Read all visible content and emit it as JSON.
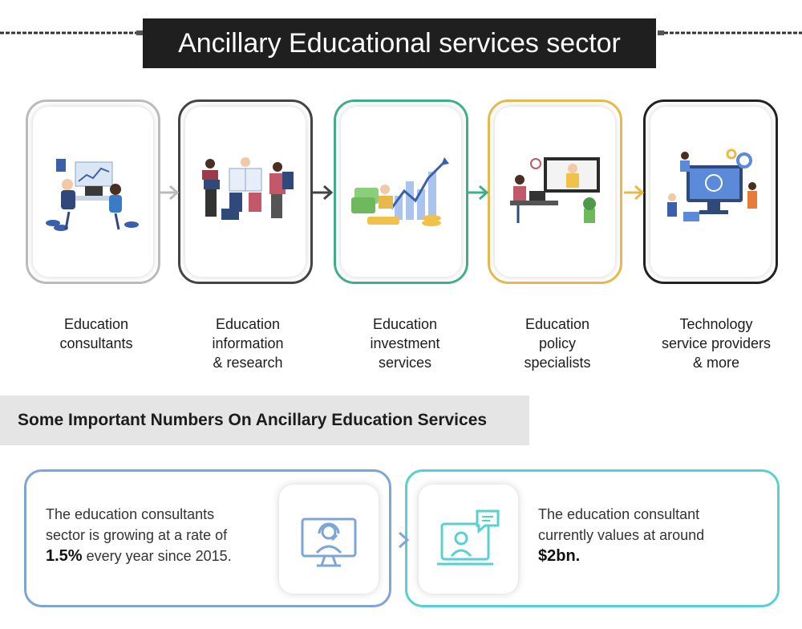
{
  "title": "Ancillary Educational services sector",
  "steps": [
    {
      "label_lines": [
        "Education",
        "consultants"
      ],
      "border": "#bbbbbb",
      "icon": "consultant-meeting-icon"
    },
    {
      "label_lines": [
        "Education",
        "information",
        "& research"
      ],
      "border": "#444444",
      "icon": "research-people-icon"
    },
    {
      "label_lines": [
        "Education",
        "investment",
        "services"
      ],
      "border": "#3fae8a",
      "icon": "investment-growth-icon"
    },
    {
      "label_lines": [
        "Education",
        "policy",
        "specialists"
      ],
      "border": "#e8b84a",
      "icon": "policy-presentation-icon"
    },
    {
      "label_lines": [
        "Technology",
        "service providers",
        "& more"
      ],
      "border": "#222222",
      "icon": "technology-service-icon"
    }
  ],
  "arrow_colors": [
    "#bbbbbb",
    "#444444",
    "#3fae8a",
    "#e8b84a"
  ],
  "numbers_heading": "Some Important Numbers On Ancillary Education Services",
  "stats": [
    {
      "lines": [
        "The education consultants",
        "sector is growing at a rate of"
      ],
      "highlight": "1.5%",
      "tail": " every year since 2015.",
      "icon": "headset-support-icon",
      "color": "#7ea4d8"
    },
    {
      "lines": [
        "The education consultant",
        "currently values at around"
      ],
      "highlight": "$2bn.",
      "tail": "",
      "icon": "video-chat-icon",
      "color": "#57d0d0"
    }
  ]
}
